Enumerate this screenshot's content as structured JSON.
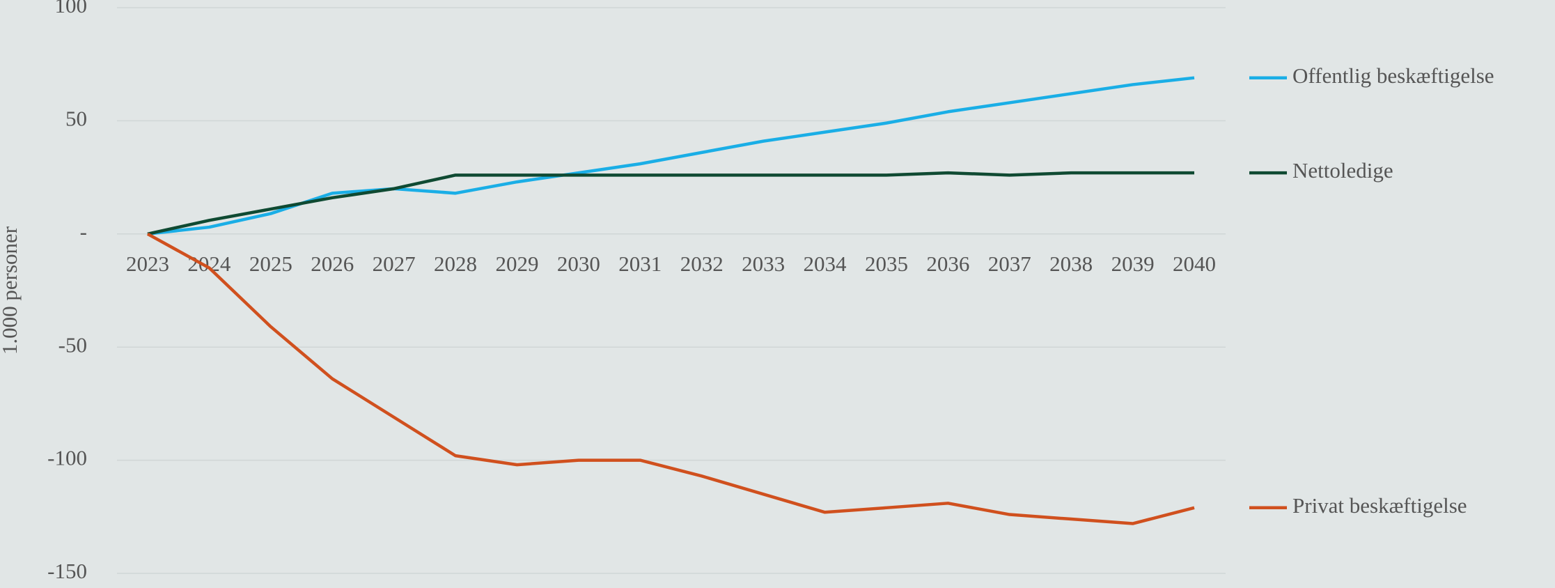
{
  "chart_data": {
    "type": "line",
    "y_label": "1.000 personer",
    "categories": [
      "2023",
      "2024",
      "2025",
      "2026",
      "2027",
      "2028",
      "2029",
      "2030",
      "2031",
      "2032",
      "2033",
      "2034",
      "2035",
      "2036",
      "2037",
      "2038",
      "2039",
      "2040"
    ],
    "series": [
      {
        "name": "Offentlig beskæftigelse",
        "color": "#1aaee6",
        "values": [
          0,
          3,
          9,
          18,
          20,
          18,
          23,
          27,
          31,
          36,
          41,
          45,
          49,
          54,
          58,
          62,
          66,
          69
        ]
      },
      {
        "name": "Nettoledige",
        "color": "#0f4a32",
        "values": [
          0,
          6,
          11,
          16,
          20,
          26,
          26,
          26,
          26,
          26,
          26,
          26,
          26,
          27,
          26,
          27,
          27,
          27
        ]
      },
      {
        "name": "Privat beskæftigelse",
        "color": "#d0501e",
        "values": [
          0,
          -15,
          -41,
          -64,
          -81,
          -98,
          -102,
          -100,
          -100,
          -107,
          -115,
          -123,
          -121,
          -119,
          -124,
          -126,
          -128,
          -121
        ]
      }
    ],
    "ylim": [
      -150,
      100
    ],
    "yticks": [
      -150,
      -100,
      -50,
      {
        "value": 0,
        "label": "-"
      },
      50,
      100
    ],
    "grid": true
  }
}
